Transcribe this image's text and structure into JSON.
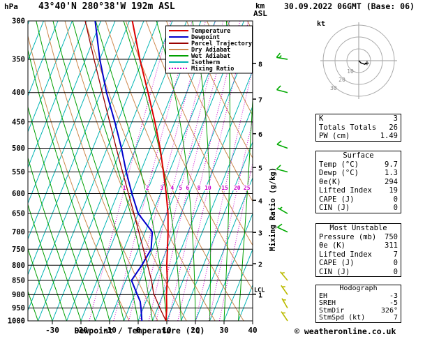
{
  "header": {
    "pressure_unit": "hPa",
    "station_title": "43°40'N 280°38'W 192m ASL",
    "height_unit_line1": "km",
    "height_unit_line2": "ASL",
    "datetime_title": "30.09.2022 06GMT (Base: 06)"
  },
  "footer": {
    "copyright": "© weatheronline.co.uk"
  },
  "legend": [
    {
      "label": "Temperature",
      "color": "#dd0000",
      "style": "solid"
    },
    {
      "label": "Dewpoint",
      "color": "#0000cc",
      "style": "solid"
    },
    {
      "label": "Parcel Trajectory",
      "color": "#990000",
      "style": "solid"
    },
    {
      "label": "Dry Adiabat",
      "color": "#cc884d",
      "style": "solid"
    },
    {
      "label": "Wet Adiabat",
      "color": "#00a000",
      "style": "solid"
    },
    {
      "label": "Isotherm",
      "color": "#00b4b4",
      "style": "solid"
    },
    {
      "label": "Mixing Ratio",
      "color": "#cc00cc",
      "style": "dotted"
    }
  ],
  "axes": {
    "pressure_ticks": [
      300,
      350,
      400,
      450,
      500,
      550,
      600,
      650,
      700,
      750,
      800,
      850,
      900,
      950,
      1000
    ],
    "temp_ticks": [
      -30,
      -20,
      -10,
      0,
      10,
      20,
      30,
      40
    ],
    "xlabel": "Dewpoint / Temperature (°C)",
    "height_ticks_km": [
      1,
      2,
      3,
      4,
      5,
      6,
      7,
      8
    ],
    "mixing_ratio_axis_label": "Mixing Ratio (g/kg)",
    "lcl_label": "LCL",
    "lcl_pressure": 895
  },
  "chart_data": {
    "type": "skewt-log-p",
    "pressure_unit": "hPa",
    "temp_axis_range_c": [
      -40,
      40
    ],
    "pressure_range_hpa": [
      300,
      1000
    ],
    "isotherm_step_c": 5,
    "dry_adiabats_theta_k": {
      "start": 270,
      "end": 390,
      "step": 10
    },
    "wet_adiabats_start_c": {
      "start": -40,
      "end": 40,
      "step": 5
    },
    "mixing_ratio_lines_gkg": [
      1,
      2,
      3,
      4,
      5,
      6,
      8,
      10,
      15,
      20,
      25
    ],
    "series": [
      {
        "name": "Temperature",
        "color": "#dd0000",
        "width": 2,
        "points": [
          [
            1000,
            9.7
          ],
          [
            950,
            8.2
          ],
          [
            925,
            7.2
          ],
          [
            900,
            6.2
          ],
          [
            850,
            4.5
          ],
          [
            800,
            2.2
          ],
          [
            750,
            0.2
          ],
          [
            700,
            -2.0
          ],
          [
            650,
            -4.6
          ],
          [
            600,
            -8.0
          ],
          [
            550,
            -12.0
          ],
          [
            500,
            -16.5
          ],
          [
            450,
            -22.0
          ],
          [
            400,
            -28.5
          ],
          [
            350,
            -36.0
          ],
          [
            300,
            -44.0
          ]
        ]
      },
      {
        "name": "Dewpoint",
        "color": "#0000cc",
        "width": 2,
        "points": [
          [
            1000,
            1.3
          ],
          [
            950,
            -0.8
          ],
          [
            925,
            -2.0
          ],
          [
            900,
            -4.0
          ],
          [
            850,
            -8.0
          ],
          [
            800,
            -6.5
          ],
          [
            750,
            -5.5
          ],
          [
            700,
            -7.5
          ],
          [
            650,
            -15.0
          ],
          [
            600,
            -20.0
          ],
          [
            550,
            -25.0
          ],
          [
            500,
            -30.0
          ],
          [
            450,
            -36.0
          ],
          [
            400,
            -43.0
          ],
          [
            350,
            -50.0
          ],
          [
            300,
            -57.0
          ]
        ]
      },
      {
        "name": "Parcel Trajectory",
        "color": "#990000",
        "width": 1.3,
        "points": [
          [
            1000,
            9.7
          ],
          [
            950,
            5.8
          ],
          [
            895,
            1.5
          ],
          [
            850,
            -1.0
          ],
          [
            800,
            -4.5
          ],
          [
            750,
            -8.2
          ],
          [
            700,
            -12.2
          ],
          [
            650,
            -16.5
          ],
          [
            600,
            -21.2
          ],
          [
            550,
            -26.3
          ],
          [
            500,
            -31.8
          ],
          [
            450,
            -37.8
          ],
          [
            400,
            -44.5
          ],
          [
            350,
            -52.0
          ],
          [
            300,
            -60.5
          ]
        ]
      }
    ],
    "wind_barbs": [
      {
        "pressure": 350,
        "dir": 280,
        "speed": 15,
        "color": "#00aa00"
      },
      {
        "pressure": 400,
        "dir": 285,
        "speed": 10,
        "color": "#00aa00"
      },
      {
        "pressure": 500,
        "dir": 290,
        "speed": 10,
        "color": "#00aa00"
      },
      {
        "pressure": 550,
        "dir": 285,
        "speed": 10,
        "color": "#00aa00"
      },
      {
        "pressure": 650,
        "dir": 300,
        "speed": 5,
        "color": "#00aa00"
      },
      {
        "pressure": 700,
        "dir": 295,
        "speed": 10,
        "color": "#00aa00"
      },
      {
        "pressure": 850,
        "dir": 320,
        "speed": 5,
        "color": "#bbbb00"
      },
      {
        "pressure": 900,
        "dir": 325,
        "speed": 5,
        "color": "#bbbb00"
      },
      {
        "pressure": 950,
        "dir": 330,
        "speed": 5,
        "color": "#bbbb00"
      },
      {
        "pressure": 1000,
        "dir": 326,
        "speed": 7,
        "color": "#bbbb00"
      }
    ]
  },
  "hodograph": {
    "unit_label": "kt",
    "ring_spacing_kt": 10,
    "ring_labels": [
      "10",
      "20",
      "30"
    ],
    "trace_uv_kt": [
      [
        0,
        0
      ],
      [
        2,
        -2
      ],
      [
        5,
        -3
      ],
      [
        7,
        -2
      ]
    ],
    "storm_marker_uv_kt": [
      7,
      -2
    ]
  },
  "stats": {
    "indices": [
      [
        "K",
        "3"
      ],
      [
        "Totals Totals",
        "26"
      ],
      [
        "PW (cm)",
        "1.49"
      ]
    ],
    "surface": {
      "title": "Surface",
      "rows": [
        [
          "Temp (°C)",
          "9.7"
        ],
        [
          "Dewp (°C)",
          "1.3"
        ],
        [
          "θe(K)",
          "294"
        ],
        [
          "Lifted Index",
          "19"
        ],
        [
          "CAPE (J)",
          "0"
        ],
        [
          "CIN (J)",
          "0"
        ]
      ]
    },
    "most_unstable": {
      "title": "Most Unstable",
      "rows": [
        [
          "Pressure (mb)",
          "750"
        ],
        [
          "θe (K)",
          "311"
        ],
        [
          "Lifted Index",
          "7"
        ],
        [
          "CAPE (J)",
          "0"
        ],
        [
          "CIN (J)",
          "0"
        ]
      ]
    },
    "hodograph": {
      "title": "Hodograph",
      "rows": [
        [
          "EH",
          "-3"
        ],
        [
          "SREH",
          "-5"
        ],
        [
          "StmDir",
          "326°"
        ],
        [
          "StmSpd (kt)",
          "7"
        ]
      ]
    }
  }
}
